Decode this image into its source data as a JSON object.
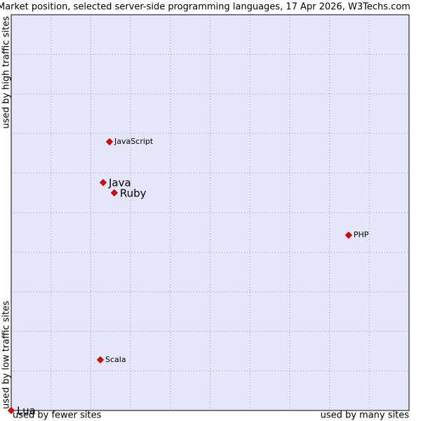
{
  "chart_data": {
    "type": "scatter",
    "title": "Market position, selected server-side programming languages, 17 Apr 2026, W3Techs.com",
    "x_label_low": "used by fewer sites",
    "x_label_high": "used by many sites",
    "y_label_low": "used by low traffic sites",
    "y_label_high": "used by high traffic sites",
    "xlim": [
      0,
      10
    ],
    "ylim": [
      0,
      10
    ],
    "xticks": [
      1,
      2,
      3,
      4,
      5,
      6,
      7,
      8,
      9
    ],
    "yticks": [
      1,
      2,
      3,
      4,
      5,
      6,
      7,
      8,
      9
    ],
    "grid": true,
    "color": "#ee0000",
    "background": "#e6e6fa",
    "points": [
      {
        "name": "JavaScript",
        "x": 2.47,
        "y": 6.79,
        "size": "small"
      },
      {
        "name": "Java",
        "x": 2.31,
        "y": 5.76,
        "size": "large"
      },
      {
        "name": "Ruby",
        "x": 2.59,
        "y": 5.5,
        "size": "large"
      },
      {
        "name": "PHP",
        "x": 8.48,
        "y": 4.43,
        "size": "small"
      },
      {
        "name": "Scala",
        "x": 2.24,
        "y": 1.28,
        "size": "small"
      },
      {
        "name": "Lua",
        "x": 0,
        "y": 0,
        "size": "large"
      }
    ]
  }
}
